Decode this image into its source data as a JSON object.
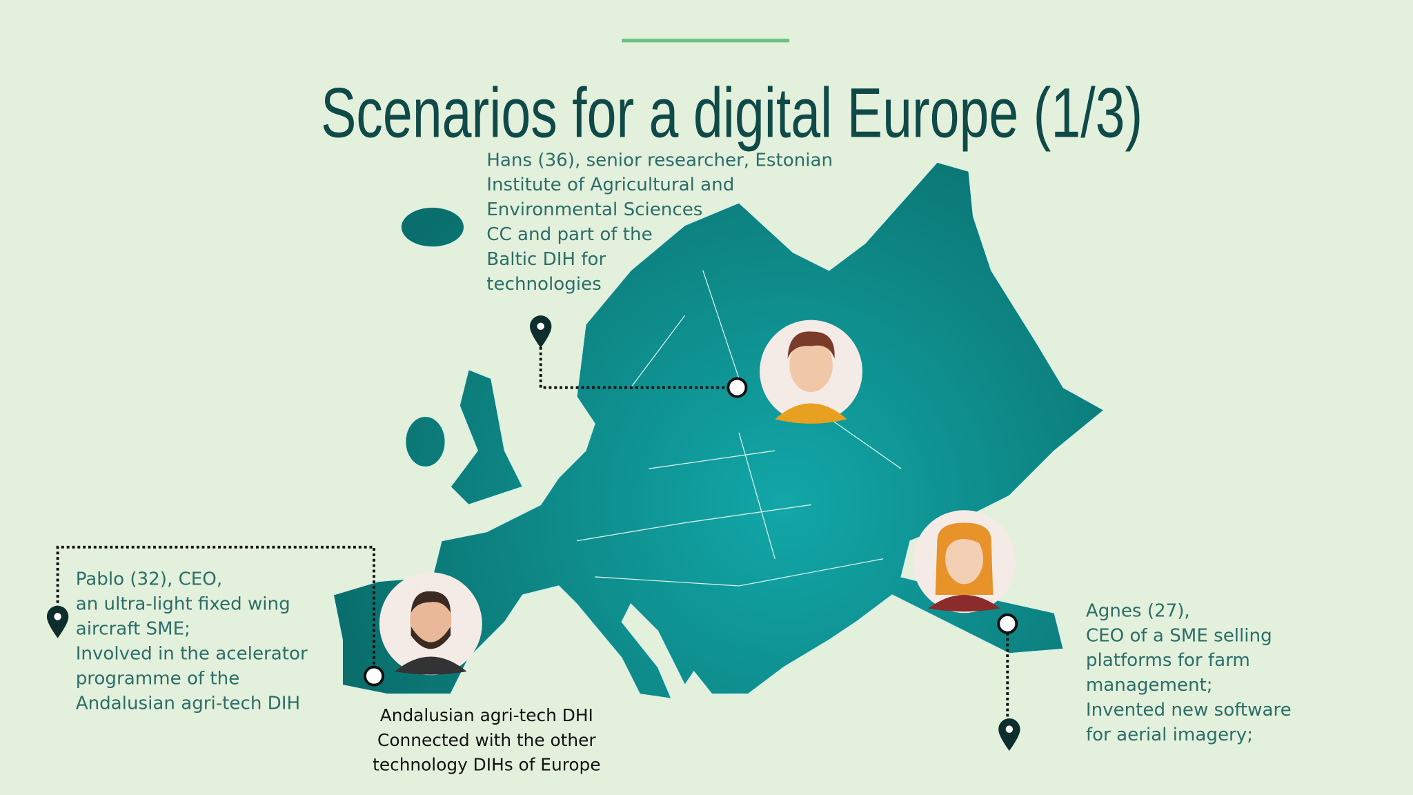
{
  "title": "Scenarios for a digital Europe (1/3)",
  "hans": {
    "lines": [
      "Hans (36), senior researcher, Estonian",
      "Institute of Agricultural and",
      "Environmental Sciences",
      "CC and part of the",
      "Baltic DIH for",
      "technologies"
    ]
  },
  "pablo": {
    "lines": [
      "Pablo (32), CEO,",
      "an ultra-light fixed wing",
      "aircraft SME;",
      "Involved in the acelerator",
      "programme of the",
      "Andalusian agri-tech DIH"
    ]
  },
  "agnes": {
    "lines": [
      "Agnes (27),",
      "CEO of a SME selling",
      "platforms for farm",
      "management;",
      "Invented new software",
      "for aerial imagery;"
    ]
  },
  "hub": {
    "lines": [
      "Andalusian agri-tech DHI",
      "Connected with the other",
      "technology DIHs of Europe"
    ]
  }
}
